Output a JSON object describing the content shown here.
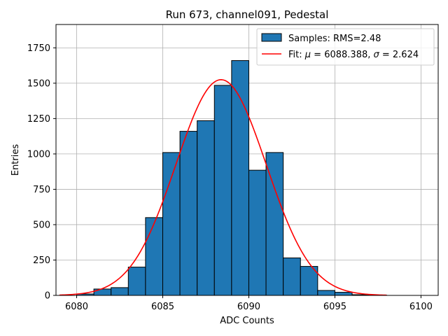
{
  "chart_data": {
    "type": "bar",
    "title": "Run 673, channel091, Pedestal",
    "xlabel": "ADC Counts",
    "ylabel": "Entries",
    "xlim": [
      6078.8,
      6101.0
    ],
    "ylim": [
      0,
      1915
    ],
    "x_ticks": [
      6080,
      6085,
      6090,
      6095,
      6100
    ],
    "y_ticks": [
      0,
      250,
      500,
      750,
      1000,
      1250,
      1500,
      1750
    ],
    "grid": true,
    "legend_position": "top-right",
    "colors": {
      "bar": "#1f77b4",
      "edge": "#000000",
      "fit": "#ff0000",
      "grid": "#b0b0b0"
    },
    "histogram": {
      "name": "Samples: RMS=2.48",
      "bin_edges": [
        6080,
        6081,
        6082,
        6083,
        6084,
        6085,
        6086,
        6087,
        6088,
        6089,
        6090,
        6091,
        6092,
        6093,
        6094,
        6095,
        6096,
        6097,
        6098
      ],
      "counts": [
        10,
        45,
        55,
        200,
        550,
        1010,
        1160,
        1235,
        1485,
        1660,
        885,
        1010,
        265,
        205,
        35,
        22,
        5,
        2
      ]
    },
    "fit": {
      "name": "Fit: μ = 6088.388, σ = 2.624",
      "legend_prefix": "Fit: ",
      "mu_symbol": "μ",
      "mu_text": " = 6088.388, ",
      "sigma_symbol": "σ",
      "sigma_text": " = 2.624",
      "mu": 6088.388,
      "sigma": 2.624,
      "amplitude": 1525,
      "x_range": [
        6079,
        6098
      ]
    }
  }
}
